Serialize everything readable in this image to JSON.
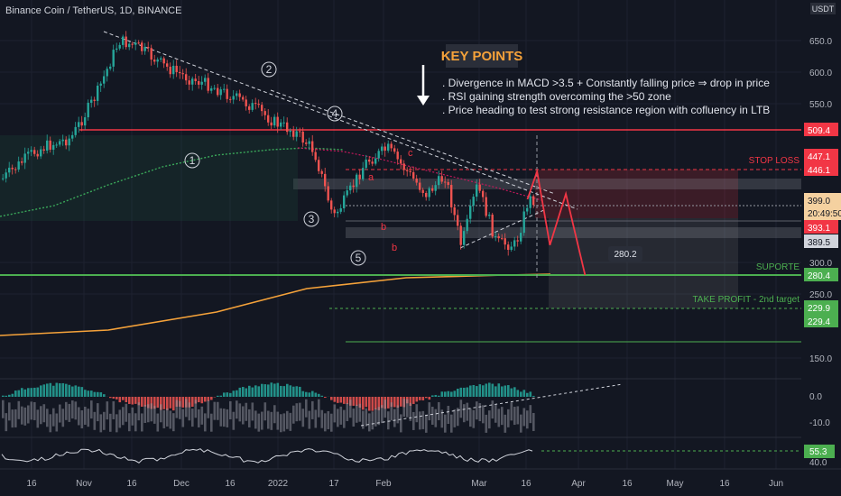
{
  "symbol_title": "Binance Coin / TetherUS, 1D, BINANCE",
  "currency": "USDT",
  "colors": {
    "bg": "#131722",
    "up": "#26a69a",
    "down": "#ef5350",
    "support": "#4caf50",
    "resistance": "#f23645",
    "ma200": "#f5a23a",
    "ma_green": "#3aa85a",
    "axis_text": "#b2b5be",
    "grid": "#1e2230"
  },
  "key_points": {
    "title": "KEY POINTS",
    "lines": [
      ". Divergence in MACD >3.5 + Constantly falling price ⇒ drop in price",
      ". RSI gaining strength overcoming the >50 zone",
      ". Price heading to test strong resistance region with cofluency in LTB"
    ]
  },
  "annotations": {
    "stop_loss": "STOP LOSS",
    "support": "SUPORTE",
    "take_profit": "TAKE PROFIT - 2nd target",
    "target_label": "280.2",
    "waves": [
      "1",
      "2",
      "3",
      "4",
      "5"
    ],
    "letters": [
      "a",
      "b",
      "c",
      "b"
    ]
  },
  "chart_data": [
    {
      "type": "line",
      "name": "price",
      "title": "Binance Coin / TetherUS, 1D, BINANCE",
      "y_axis_ticks": [
        650.0,
        600.0,
        550.0,
        300.0,
        250.0,
        150.0
      ],
      "x_axis_ticks": [
        "16",
        "Nov",
        "16",
        "Dec",
        "16",
        "2022",
        "17",
        "Feb",
        "Mar",
        "16",
        "Apr",
        "16",
        "May",
        "16",
        "Jun"
      ],
      "price_levels": {
        "resistance": 509.4,
        "stop_loss_top": 447.1,
        "stop_loss": 446.1,
        "last_price": 399.0,
        "countdown": "20:49:50",
        "level_393": 393.1,
        "level_389": 389.5,
        "support": 280.4,
        "take_profit_1": 229.9,
        "take_profit_2": 229.4
      },
      "projection_target": 280.2,
      "x": [
        "Oct 6",
        "Oct 16",
        "Oct 20",
        "Oct 28",
        "Nov 5",
        "Nov 12",
        "Nov 18",
        "Nov 26",
        "Dec 4",
        "Dec 10",
        "Dec 18",
        "Dec 24",
        "Dec 31",
        "Jan 6",
        "Jan 12",
        "Jan 18",
        "Jan 22",
        "Jan 28",
        "Feb 4",
        "Feb 10",
        "Feb 16",
        "Feb 22",
        "Feb 27",
        "Mar 4",
        "Mar 10",
        "Mar 16",
        "Mar 20"
      ],
      "y": [
        420,
        455,
        470,
        490,
        565,
        660,
        640,
        610,
        590,
        580,
        560,
        545,
        520,
        505,
        460,
        395,
        400,
        440,
        465,
        430,
        405,
        425,
        370,
        415,
        385,
        375,
        399
      ],
      "projection": {
        "x": [
          "Mar 20",
          "Mar 23",
          "Mar 27",
          "Apr 1",
          "Apr 7"
        ],
        "y": [
          399,
          430,
          375,
          405,
          280.2
        ]
      }
    },
    {
      "type": "bar",
      "name": "MACD histogram",
      "y_axis_ticks": [
        0.0,
        -10.0
      ]
    },
    {
      "type": "line",
      "name": "RSI",
      "value": 55.3,
      "y_axis_ticks": [
        40.0
      ]
    }
  ]
}
